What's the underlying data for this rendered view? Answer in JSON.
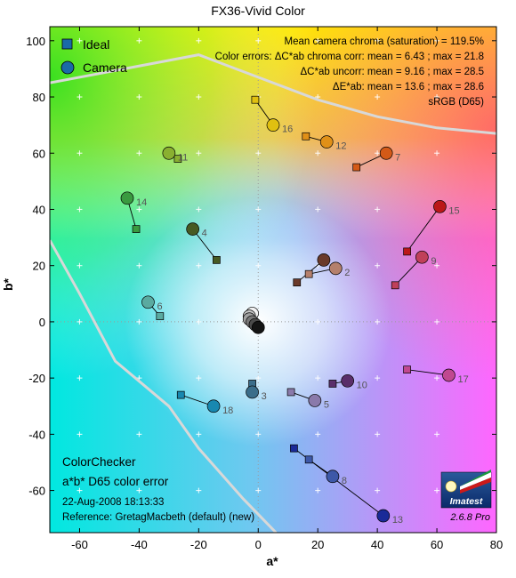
{
  "chart_data": {
    "type": "scatter",
    "title": "FX36-Vivid Color",
    "xlabel": "a*",
    "ylabel": "b*",
    "xlim": [
      -70,
      80
    ],
    "ylim": [
      -75,
      105
    ],
    "x_ticks": [
      -60,
      -40,
      -20,
      0,
      20,
      40,
      60,
      80
    ],
    "y_ticks": [
      -60,
      -40,
      -20,
      0,
      20,
      40,
      60,
      80,
      100
    ],
    "x_tick_labels": [
      "-60",
      "-40",
      "-20",
      "0",
      "20",
      "40",
      "60",
      "80"
    ],
    "y_tick_labels": [
      "-60",
      "-40",
      "-20",
      "0",
      "20",
      "40",
      "60",
      "80",
      "100"
    ],
    "grid": true,
    "legend_position": "top-left",
    "legend": [
      {
        "marker": "square",
        "label": "Ideal"
      },
      {
        "marker": "circle",
        "label": "Camera"
      }
    ],
    "stats": [
      "Mean camera chroma (saturation) = 119.5%",
      "Color errors:  ΔC*ab chroma corr:  mean = 6.43 ;  max = 21.8",
      "ΔC*ab uncorr:  mean = 9.16 ;  max = 28.5",
      "ΔE*ab:  mean = 13.6 ;  max = 28.6",
      "sRGB (D65)"
    ],
    "bottom_left_text": [
      "ColorChecker",
      "a*b* D65 color error",
      "22-Aug-2008 18:13:33",
      "Reference: GretagMacbeth (default) (new)"
    ],
    "logo_text": "Imatest",
    "version_text": "2.6.8  Pro",
    "patches": [
      {
        "id": "1",
        "ideal": [
          13,
          14
        ],
        "camera": [
          22,
          22
        ],
        "color": "#6a3a2a",
        "show_label": false
      },
      {
        "id": "2",
        "ideal": [
          17,
          17
        ],
        "camera": [
          26,
          19
        ],
        "color": "#b5806c",
        "show_label": true
      },
      {
        "id": "3",
        "ideal": [
          -2,
          -22
        ],
        "camera": [
          -2,
          -25
        ],
        "color": "#3a6d8a",
        "show_label": true
      },
      {
        "id": "4",
        "ideal": [
          -14,
          22
        ],
        "camera": [
          -22,
          33
        ],
        "color": "#475a23",
        "show_label": true
      },
      {
        "id": "5",
        "ideal": [
          11,
          -25
        ],
        "camera": [
          19,
          -28
        ],
        "color": "#8a7aaa",
        "show_label": true
      },
      {
        "id": "6",
        "ideal": [
          -33,
          2
        ],
        "camera": [
          -37,
          7
        ],
        "color": "#5aaaa0",
        "show_label": true
      },
      {
        "id": "7",
        "ideal": [
          33,
          55
        ],
        "camera": [
          43,
          60
        ],
        "color": "#d45a18",
        "show_label": true
      },
      {
        "id": "8",
        "ideal": [
          17,
          -49
        ],
        "camera": [
          25,
          -55
        ],
        "color": "#3d58a8",
        "show_label": true
      },
      {
        "id": "9",
        "ideal": [
          46,
          13
        ],
        "camera": [
          55,
          23
        ],
        "color": "#c0405a",
        "show_label": true
      },
      {
        "id": "10",
        "ideal": [
          25,
          -22
        ],
        "camera": [
          30,
          -21
        ],
        "color": "#5a2e6a",
        "show_label": true
      },
      {
        "id": "11",
        "ideal": [
          -27,
          58
        ],
        "camera": [
          -30,
          60
        ],
        "color": "#8ab030",
        "show_label": true
      },
      {
        "id": "12",
        "ideal": [
          16,
          66
        ],
        "camera": [
          23,
          64
        ],
        "color": "#e09018",
        "show_label": true
      },
      {
        "id": "13",
        "ideal": [
          12,
          -45
        ],
        "camera": [
          42,
          -69
        ],
        "color": "#1a2a98",
        "show_label": true
      },
      {
        "id": "14",
        "ideal": [
          -41,
          33
        ],
        "camera": [
          -44,
          44
        ],
        "color": "#3a9a40",
        "show_label": true
      },
      {
        "id": "15",
        "ideal": [
          50,
          25
        ],
        "camera": [
          61,
          41
        ],
        "color": "#bb1818",
        "show_label": true
      },
      {
        "id": "16",
        "ideal": [
          -1,
          79
        ],
        "camera": [
          5,
          70
        ],
        "color": "#e0c010",
        "show_label": true
      },
      {
        "id": "17",
        "ideal": [
          50,
          -17
        ],
        "camera": [
          64,
          -19
        ],
        "color": "#c04890",
        "show_label": true
      },
      {
        "id": "18",
        "ideal": [
          -26,
          -26
        ],
        "camera": [
          -15,
          -30
        ],
        "color": "#1888b0",
        "show_label": true
      }
    ],
    "neutrals": [
      {
        "camera": [
          -2,
          3
        ],
        "color": "#f2f2f2"
      },
      {
        "camera": [
          -3,
          2
        ],
        "color": "#c8c8c8"
      },
      {
        "camera": [
          -3,
          1
        ],
        "color": "#a0a0a0"
      },
      {
        "camera": [
          -2,
          0
        ],
        "color": "#787878"
      },
      {
        "camera": [
          -1,
          -1
        ],
        "color": "#4a4a4a"
      },
      {
        "camera": [
          0,
          -2
        ],
        "color": "#141414"
      }
    ]
  }
}
